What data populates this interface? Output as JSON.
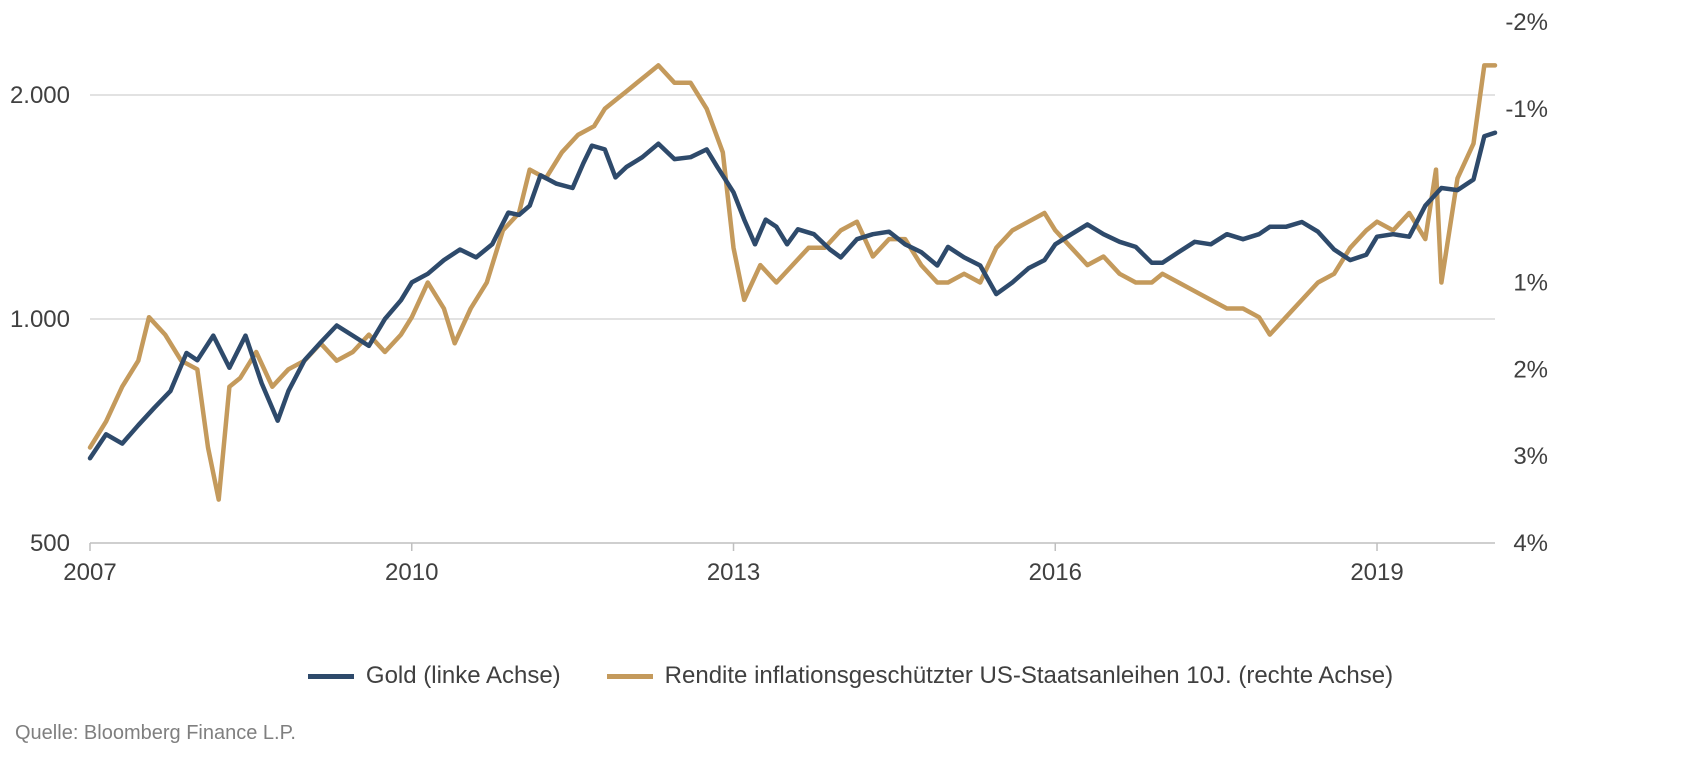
{
  "chart_data": {
    "type": "line",
    "title": "",
    "xlabel": "",
    "ylabel_left": "",
    "ylabel_right": "",
    "x_ticks": [
      "2007",
      "2010",
      "2013",
      "2016",
      "2019"
    ],
    "x_range": [
      2007.0,
      2020.1
    ],
    "y_left": {
      "scale": "log",
      "range": [
        500,
        2350
      ],
      "ticks": [
        {
          "value": 500,
          "label": "500"
        },
        {
          "value": 1000,
          "label": "1.000"
        },
        {
          "value": 2000,
          "label": "2.000"
        }
      ],
      "grid": true
    },
    "y_right": {
      "scale": "linear",
      "inverted": true,
      "range": [
        -2,
        4
      ],
      "ticks": [
        {
          "value": -2,
          "label": "-2%"
        },
        {
          "value": -1,
          "label": "-1%"
        },
        {
          "value": 1,
          "label": "1%"
        },
        {
          "value": 2,
          "label": "2%"
        },
        {
          "value": 3,
          "label": "3%"
        },
        {
          "value": 4,
          "label": "4%"
        }
      ]
    },
    "legend_position": "bottom-center",
    "series": [
      {
        "name": "Gold (linke Achse)",
        "axis": "left",
        "color": "#2e4a6b",
        "x": [
          2007.0,
          2007.15,
          2007.3,
          2007.45,
          2007.6,
          2007.75,
          2007.9,
          2008.0,
          2008.15,
          2008.3,
          2008.45,
          2008.6,
          2008.75,
          2008.85,
          2009.0,
          2009.15,
          2009.3,
          2009.45,
          2009.6,
          2009.75,
          2009.9,
          2010.0,
          2010.15,
          2010.3,
          2010.45,
          2010.6,
          2010.75,
          2010.9,
          2011.0,
          2011.1,
          2011.2,
          2011.35,
          2011.5,
          2011.6,
          2011.68,
          2011.8,
          2011.9,
          2012.0,
          2012.15,
          2012.3,
          2012.45,
          2012.6,
          2012.75,
          2012.85,
          2013.0,
          2013.1,
          2013.2,
          2013.3,
          2013.4,
          2013.5,
          2013.6,
          2013.75,
          2013.9,
          2014.0,
          2014.15,
          2014.3,
          2014.45,
          2014.6,
          2014.75,
          2014.9,
          2015.0,
          2015.15,
          2015.3,
          2015.45,
          2015.6,
          2015.75,
          2015.9,
          2016.0,
          2016.15,
          2016.3,
          2016.45,
          2016.6,
          2016.75,
          2016.9,
          2017.0,
          2017.15,
          2017.3,
          2017.45,
          2017.6,
          2017.75,
          2017.9,
          2018.0,
          2018.15,
          2018.3,
          2018.45,
          2018.6,
          2018.75,
          2018.9,
          2019.0,
          2019.15,
          2019.3,
          2019.45,
          2019.6,
          2019.75,
          2019.9,
          2020.0,
          2020.1
        ],
        "values": [
          650,
          700,
          680,
          720,
          760,
          800,
          900,
          880,
          950,
          860,
          950,
          820,
          730,
          800,
          880,
          930,
          980,
          950,
          920,
          1000,
          1060,
          1120,
          1150,
          1200,
          1240,
          1210,
          1260,
          1390,
          1380,
          1420,
          1560,
          1520,
          1500,
          1620,
          1710,
          1690,
          1550,
          1600,
          1650,
          1720,
          1640,
          1650,
          1690,
          1600,
          1480,
          1360,
          1260,
          1360,
          1330,
          1260,
          1320,
          1300,
          1240,
          1210,
          1280,
          1300,
          1310,
          1260,
          1230,
          1180,
          1250,
          1210,
          1180,
          1080,
          1120,
          1170,
          1200,
          1260,
          1300,
          1340,
          1300,
          1270,
          1250,
          1190,
          1190,
          1230,
          1270,
          1260,
          1300,
          1280,
          1300,
          1330,
          1330,
          1350,
          1310,
          1240,
          1200,
          1220,
          1290,
          1300,
          1290,
          1420,
          1500,
          1490,
          1540,
          1760,
          1780
        ]
      },
      {
        "name": "Rendite inflationsgeschützter US-Staatsanleihen 10J. (rechte Achse)",
        "axis": "right",
        "color": "#c49a5c",
        "x": [
          2007.0,
          2007.15,
          2007.3,
          2007.45,
          2007.55,
          2007.7,
          2007.85,
          2008.0,
          2008.1,
          2008.2,
          2008.3,
          2008.4,
          2008.55,
          2008.7,
          2008.85,
          2009.0,
          2009.15,
          2009.3,
          2009.45,
          2009.6,
          2009.75,
          2009.9,
          2010.0,
          2010.15,
          2010.3,
          2010.4,
          2010.55,
          2010.7,
          2010.85,
          2011.0,
          2011.1,
          2011.25,
          2011.4,
          2011.55,
          2011.7,
          2011.8,
          2011.9,
          2012.0,
          2012.1,
          2012.2,
          2012.3,
          2012.45,
          2012.6,
          2012.75,
          2012.9,
          2013.0,
          2013.1,
          2013.25,
          2013.4,
          2013.55,
          2013.7,
          2013.85,
          2014.0,
          2014.15,
          2014.3,
          2014.45,
          2014.6,
          2014.75,
          2014.9,
          2015.0,
          2015.15,
          2015.3,
          2015.45,
          2015.6,
          2015.75,
          2015.9,
          2016.0,
          2016.15,
          2016.3,
          2016.45,
          2016.6,
          2016.75,
          2016.9,
          2017.0,
          2017.15,
          2017.3,
          2017.45,
          2017.6,
          2017.75,
          2017.9,
          2018.0,
          2018.15,
          2018.3,
          2018.45,
          2018.6,
          2018.75,
          2018.9,
          2019.0,
          2019.15,
          2019.3,
          2019.45,
          2019.55,
          2019.6,
          2019.75,
          2019.9,
          2020.0,
          2020.1
        ],
        "values": [
          2.9,
          2.6,
          2.2,
          1.9,
          1.4,
          1.6,
          1.9,
          2.0,
          2.9,
          3.5,
          2.2,
          2.1,
          1.8,
          2.2,
          2.0,
          1.9,
          1.7,
          1.9,
          1.8,
          1.6,
          1.8,
          1.6,
          1.4,
          1.0,
          1.3,
          1.7,
          1.3,
          1.0,
          0.4,
          0.2,
          -0.3,
          -0.2,
          -0.5,
          -0.7,
          -0.8,
          -1.0,
          -1.1,
          -1.2,
          -1.3,
          -1.4,
          -1.5,
          -1.3,
          -1.3,
          -1.0,
          -0.5,
          0.6,
          1.2,
          0.8,
          1.0,
          0.8,
          0.6,
          0.6,
          0.4,
          0.3,
          0.7,
          0.5,
          0.5,
          0.8,
          1.0,
          1.0,
          0.9,
          1.0,
          0.6,
          0.4,
          0.3,
          0.2,
          0.4,
          0.6,
          0.8,
          0.7,
          0.9,
          1.0,
          1.0,
          0.9,
          1.0,
          1.1,
          1.2,
          1.3,
          1.3,
          1.4,
          1.6,
          1.4,
          1.2,
          1.0,
          0.9,
          0.6,
          0.4,
          0.3,
          0.4,
          0.2,
          0.5,
          -0.3,
          1.0,
          -0.2,
          -0.6,
          -1.5,
          -1.5
        ]
      }
    ]
  },
  "legend": {
    "gold_label": "Gold (linke Achse)",
    "tips_label": "Rendite inflationsgeschützter US-Staatsanleihen 10J. (rechte Achse)"
  },
  "source": "Quelle: Bloomberg Finance L.P."
}
